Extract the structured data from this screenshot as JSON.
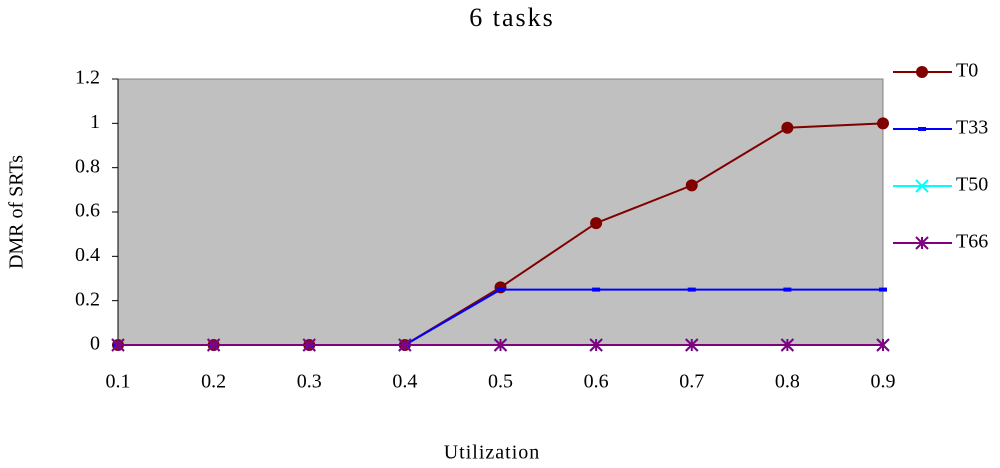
{
  "chart_data": {
    "type": "line",
    "title": "6 tasks",
    "x_label": "Utilization",
    "y_label": "DMR of SRTs",
    "categories": [
      "0.1",
      "0.2",
      "0.3",
      "0.4",
      "0.5",
      "0.6",
      "0.7",
      "0.8",
      "0.9"
    ],
    "series": [
      {
        "name": "T0",
        "color": "#800000",
        "marker": "circle",
        "values": [
          0,
          0,
          0,
          0,
          0.26,
          0.55,
          0.72,
          0.98,
          1
        ]
      },
      {
        "name": "T33",
        "color": "#0000ff",
        "marker": "dash",
        "values": [
          0,
          0,
          0,
          0,
          0.25,
          0.25,
          0.25,
          0.25,
          0.25
        ]
      },
      {
        "name": "T50",
        "color": "#00ffff",
        "marker": "x",
        "values": [
          0,
          0,
          0,
          0,
          0,
          0,
          0,
          0,
          0
        ]
      },
      {
        "name": "T66",
        "color": "#800080",
        "marker": "asterisk",
        "values": [
          0,
          0,
          0,
          0,
          0,
          0,
          0,
          0,
          0
        ]
      }
    ],
    "ylim": [
      0,
      1.2
    ],
    "yticks": [
      0,
      0.2,
      0.4,
      0.6,
      0.8,
      1,
      1.2
    ],
    "legend": "right"
  }
}
